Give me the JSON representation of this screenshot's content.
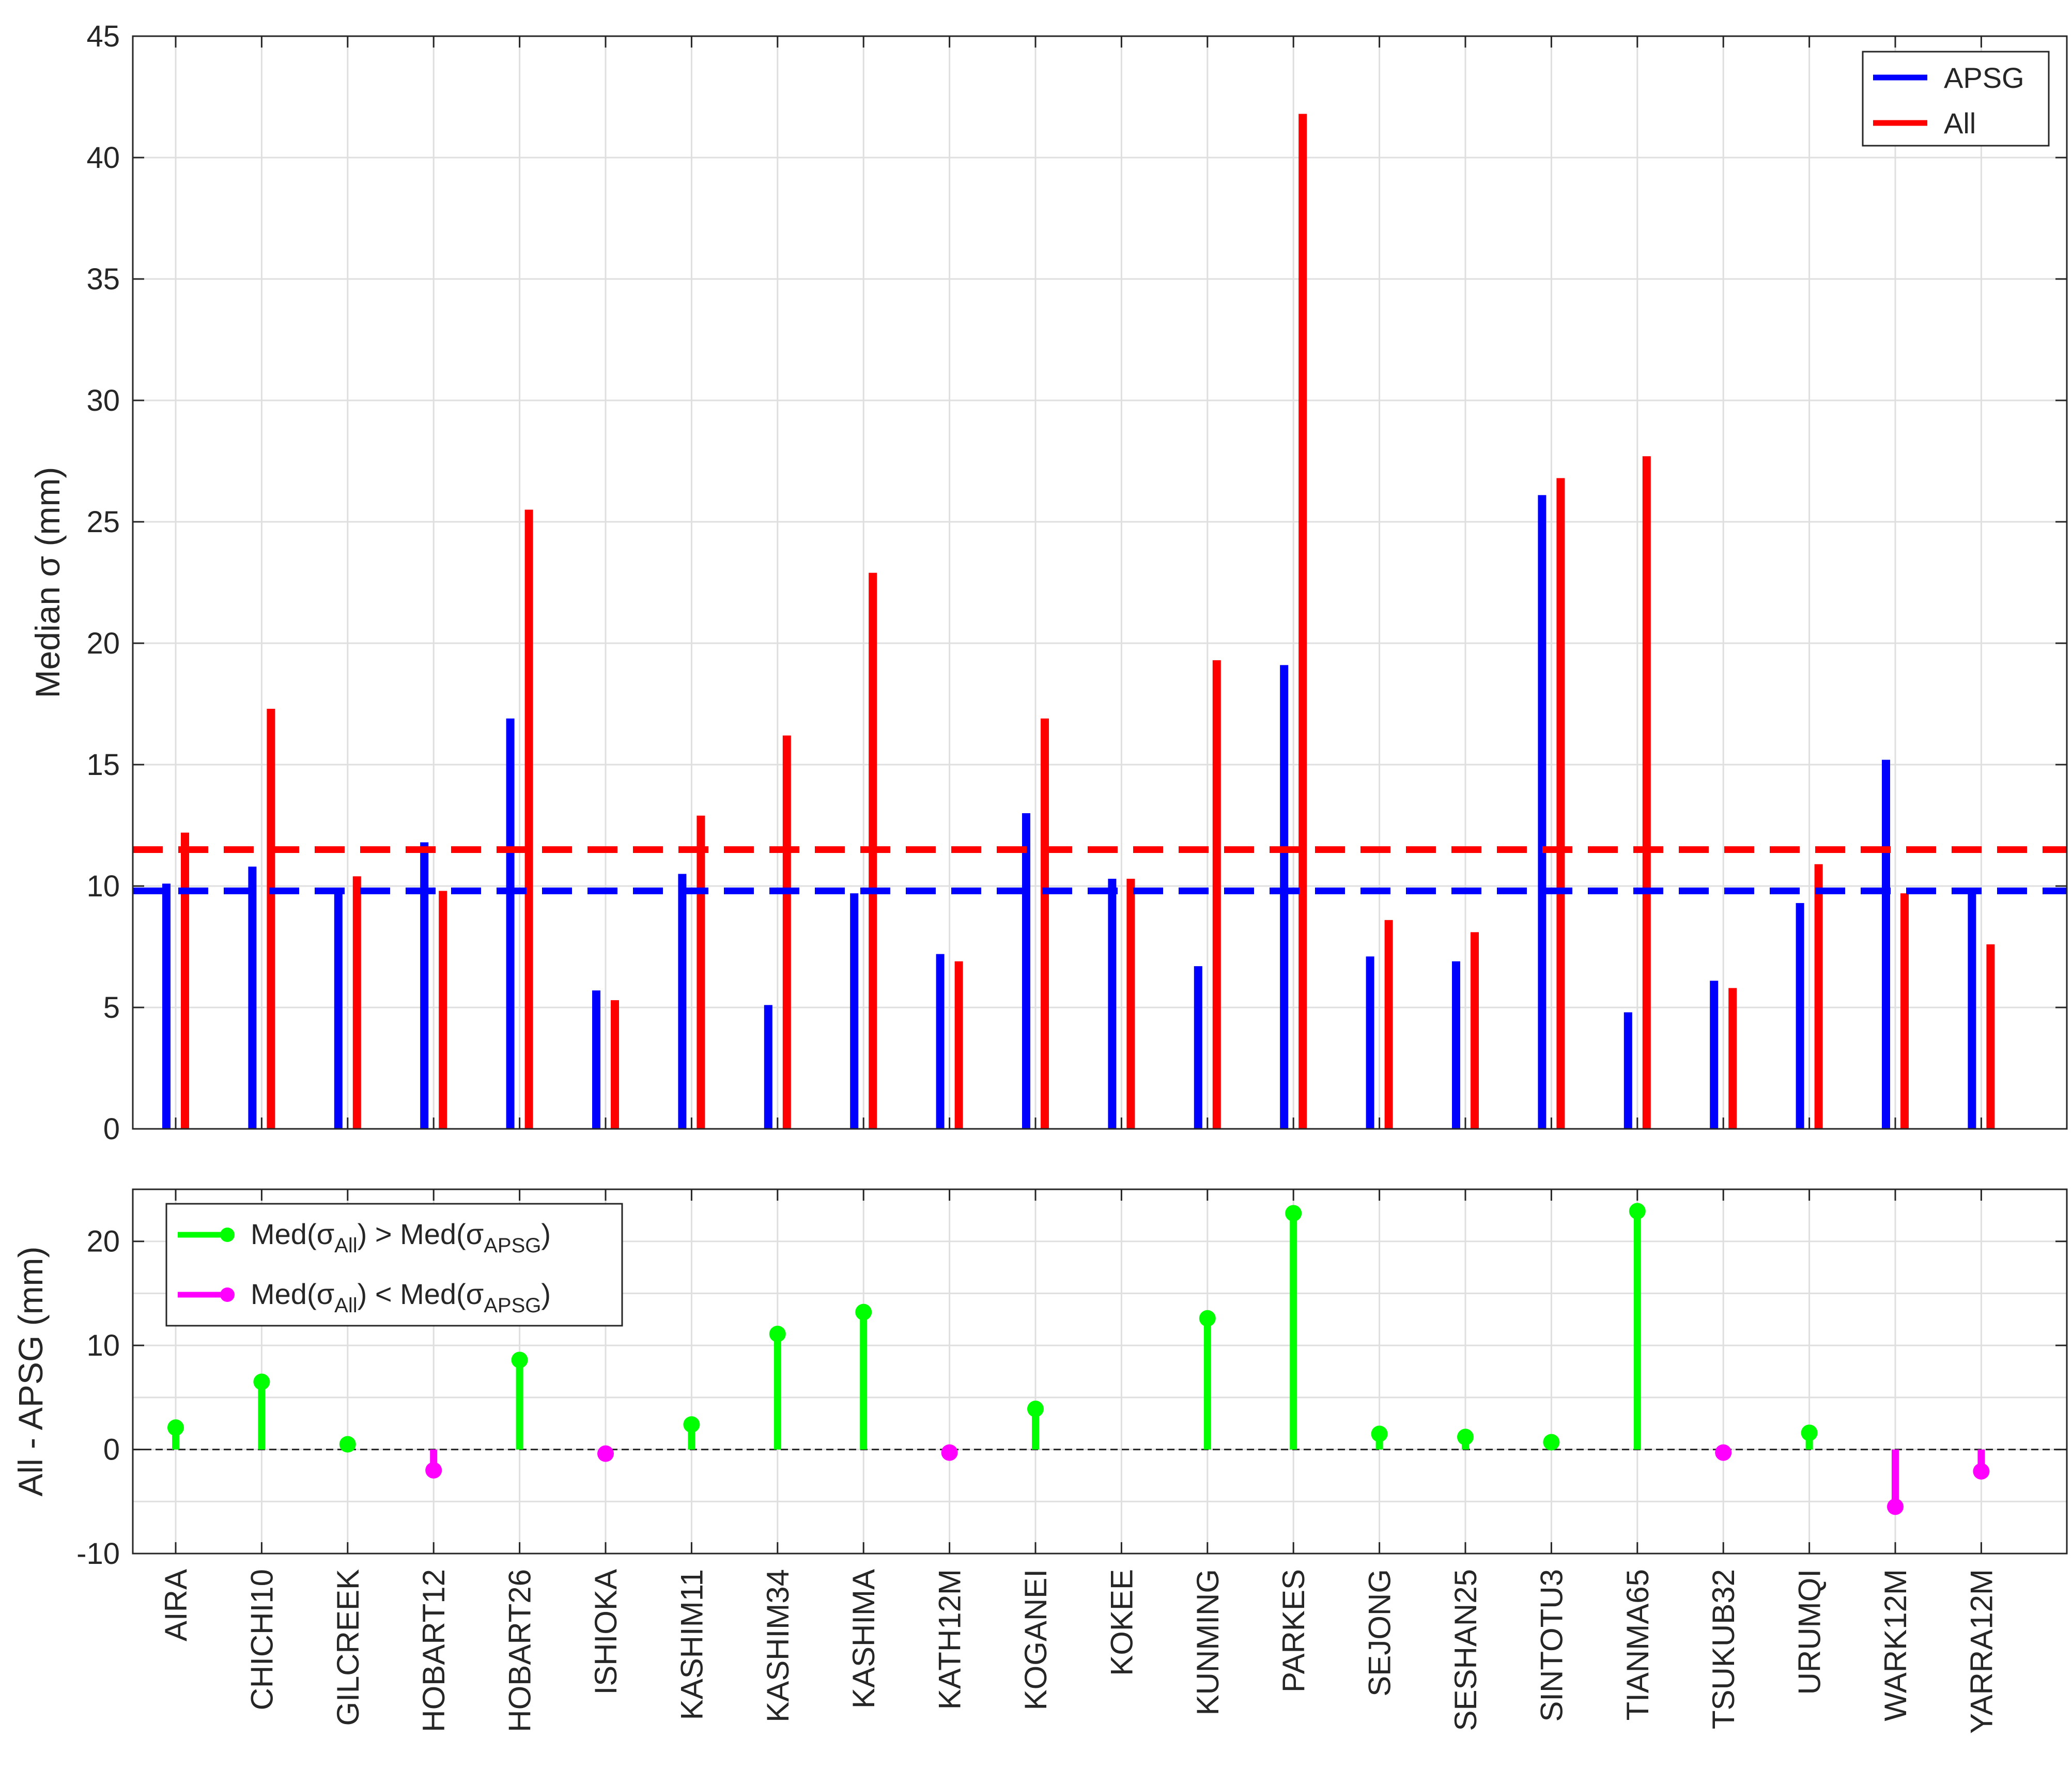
{
  "chart_data": [
    {
      "type": "bar",
      "ylabel": "Median σ (mm)",
      "ylim": [
        0,
        45
      ],
      "yticks": [
        0,
        5,
        10,
        15,
        20,
        25,
        30,
        35,
        40,
        45
      ],
      "grid": true,
      "legend_position": "top-right",
      "categories": [
        "AIRA",
        "CHICHI10",
        "GILCREEK",
        "HOBART12",
        "HOBART26",
        "ISHIOKA",
        "KASHIM11",
        "KASHIM34",
        "KASHIMA",
        "KATH12M",
        "KOGANEI",
        "KOKEE",
        "KUNMING",
        "PARKES",
        "SEJONG",
        "SESHAN25",
        "SINTOTU3",
        "TIANMA65",
        "TSUKUB32",
        "URUMQI",
        "WARK12M",
        "YARRA12M"
      ],
      "series": [
        {
          "name": "APSG",
          "color": "#0000ff",
          "values": [
            10.1,
            10.8,
            9.9,
            11.8,
            16.9,
            5.7,
            10.5,
            5.1,
            9.7,
            7.2,
            13.0,
            10.3,
            6.7,
            19.1,
            7.1,
            6.9,
            26.1,
            4.8,
            6.1,
            9.3,
            15.2,
            9.8
          ]
        },
        {
          "name": "All",
          "color": "#ff0000",
          "values": [
            12.2,
            17.3,
            10.4,
            9.8,
            25.5,
            5.3,
            12.9,
            16.2,
            22.9,
            6.9,
            16.9,
            10.3,
            19.3,
            41.8,
            8.6,
            8.1,
            26.8,
            27.7,
            5.8,
            10.9,
            9.7,
            7.6
          ]
        }
      ],
      "reference_lines": [
        {
          "color": "#0000ff",
          "style": "dashed",
          "value": 9.8
        },
        {
          "color": "#ff0000",
          "style": "dashed",
          "value": 11.5
        }
      ]
    },
    {
      "type": "stem",
      "ylabel": "All - APSG (mm)",
      "ylim": [
        -10,
        25
      ],
      "yticks": [
        -10,
        0,
        10,
        20
      ],
      "grid": true,
      "legend_position": "top-left",
      "categories": [
        "AIRA",
        "CHICHI10",
        "GILCREEK",
        "HOBART12",
        "HOBART26",
        "ISHIOKA",
        "KASHIM11",
        "KASHIM34",
        "KASHIMA",
        "KATH12M",
        "KOGANEI",
        "KOKEE",
        "KUNMING",
        "PARKES",
        "SEJONG",
        "SESHAN25",
        "SINTOTU3",
        "TIANMA65",
        "TSUKUB32",
        "URUMQI",
        "WARK12M",
        "YARRA12M"
      ],
      "values": [
        2.1,
        6.5,
        0.5,
        -2.0,
        8.6,
        -0.4,
        2.4,
        11.1,
        13.2,
        -0.3,
        3.9,
        0.0,
        12.6,
        22.7,
        1.5,
        1.2,
        0.7,
        22.9,
        -0.3,
        1.6,
        -5.5,
        -2.1
      ],
      "positive_color": "#00ff00",
      "negative_color": "#ff00ff",
      "legend": [
        {
          "color": "#00ff00",
          "pre": "Med(σ",
          "sub1": "All",
          "mid": ") > Med(σ",
          "sub2": "APSG",
          "post": ")"
        },
        {
          "color": "#ff00ff",
          "pre": "Med(σ",
          "sub1": "All",
          "mid": ") < Med(σ",
          "sub2": "APSG",
          "post": ")"
        }
      ]
    }
  ]
}
